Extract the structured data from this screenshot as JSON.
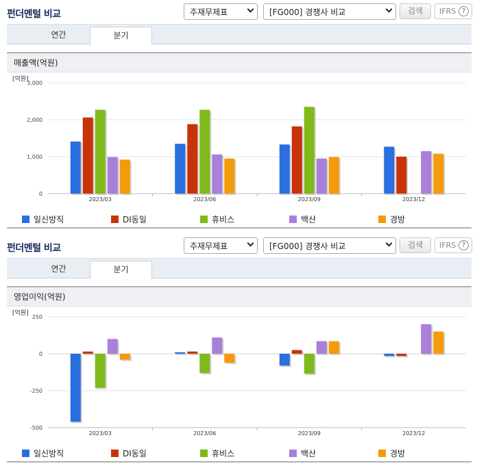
{
  "panels": [
    {
      "title": "펀더멘털 비교",
      "select1": "주재무제표",
      "select2": "[FG000] 경쟁사 비교",
      "search_label": "검색",
      "ifrs_label": "IFRS",
      "help_label": "?",
      "tabs": [
        {
          "label": "연간",
          "active": false
        },
        {
          "label": "분기",
          "active": true
        }
      ],
      "chart_title": "매출액(억원)"
    },
    {
      "title": "펀더멘털 비교",
      "select1": "주재무제표",
      "select2": "[FG000] 경쟁사 비교",
      "search_label": "검색",
      "ifrs_label": "IFRS",
      "help_label": "?",
      "tabs": [
        {
          "label": "연간",
          "active": false
        },
        {
          "label": "분기",
          "active": true
        }
      ],
      "chart_title": "영업이익(억원)"
    }
  ],
  "colors": {
    "일신방직": "#2a6ee0",
    "DI동일": "#c8330c",
    "휴비스": "#7fba1a",
    "백산": "#a97fd9",
    "경방": "#f59a0b"
  },
  "chart_data": [
    {
      "type": "bar",
      "title": "매출액(억원)",
      "unit_label": "[억원]",
      "categories": [
        "2023/03",
        "2023/06",
        "2023/09",
        "2023/12"
      ],
      "ylim": [
        0,
        3000
      ],
      "yticks": [
        0,
        1000,
        2000,
        3000
      ],
      "ytick_labels": [
        "0",
        "1,000",
        "2,000",
        "3,000"
      ],
      "grid": true,
      "legend": "bottom",
      "series": [
        {
          "name": "일신방직",
          "values": [
            1410,
            1350,
            1330,
            1270
          ]
        },
        {
          "name": "DI동일",
          "values": [
            2060,
            1880,
            1820,
            1000
          ]
        },
        {
          "name": "휴비스",
          "values": [
            2270,
            2270,
            2350,
            null
          ]
        },
        {
          "name": "백산",
          "values": [
            990,
            1060,
            950,
            1150
          ]
        },
        {
          "name": "경방",
          "values": [
            920,
            950,
            990,
            1080
          ]
        }
      ]
    },
    {
      "type": "bar",
      "title": "영업이익(억원)",
      "unit_label": "[억원]",
      "categories": [
        "2023/03",
        "2023/06",
        "2023/09",
        "2023/12"
      ],
      "ylim": [
        -500,
        250
      ],
      "yticks": [
        -500,
        -250,
        0,
        250
      ],
      "ytick_labels": [
        "-500",
        "-250",
        "0",
        "250"
      ],
      "grid": true,
      "legend": "bottom",
      "series": [
        {
          "name": "일신방직",
          "values": [
            -460,
            10,
            -80,
            -15
          ]
        },
        {
          "name": "DI동일",
          "values": [
            15,
            15,
            25,
            -15
          ]
        },
        {
          "name": "휴비스",
          "values": [
            -230,
            -130,
            -135,
            null
          ]
        },
        {
          "name": "백산",
          "values": [
            100,
            110,
            85,
            200
          ]
        },
        {
          "name": "경방",
          "values": [
            -40,
            -60,
            85,
            150
          ]
        }
      ]
    }
  ]
}
